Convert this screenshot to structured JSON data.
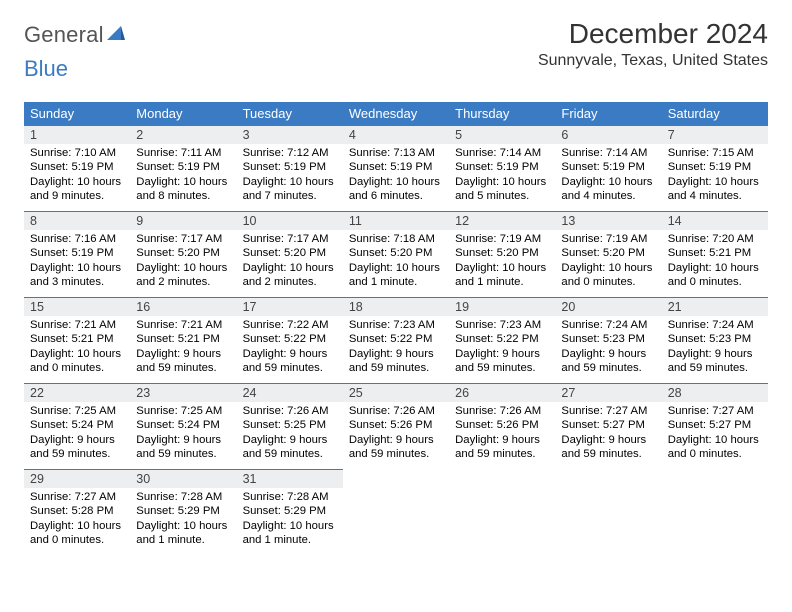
{
  "brand": {
    "word1": "General",
    "word2": "Blue",
    "color1": "#555555",
    "color2": "#3b7bc4"
  },
  "title": "December 2024",
  "location": "Sunnyvale, Texas, United States",
  "header_bg": "#3b7bc4",
  "days_of_week": [
    "Sunday",
    "Monday",
    "Tuesday",
    "Wednesday",
    "Thursday",
    "Friday",
    "Saturday"
  ],
  "cells": [
    {
      "n": 1,
      "sunrise": "7:10 AM",
      "sunset": "5:19 PM",
      "daylight": "10 hours and 9 minutes."
    },
    {
      "n": 2,
      "sunrise": "7:11 AM",
      "sunset": "5:19 PM",
      "daylight": "10 hours and 8 minutes."
    },
    {
      "n": 3,
      "sunrise": "7:12 AM",
      "sunset": "5:19 PM",
      "daylight": "10 hours and 7 minutes."
    },
    {
      "n": 4,
      "sunrise": "7:13 AM",
      "sunset": "5:19 PM",
      "daylight": "10 hours and 6 minutes."
    },
    {
      "n": 5,
      "sunrise": "7:14 AM",
      "sunset": "5:19 PM",
      "daylight": "10 hours and 5 minutes."
    },
    {
      "n": 6,
      "sunrise": "7:14 AM",
      "sunset": "5:19 PM",
      "daylight": "10 hours and 4 minutes."
    },
    {
      "n": 7,
      "sunrise": "7:15 AM",
      "sunset": "5:19 PM",
      "daylight": "10 hours and 4 minutes."
    },
    {
      "n": 8,
      "sunrise": "7:16 AM",
      "sunset": "5:19 PM",
      "daylight": "10 hours and 3 minutes."
    },
    {
      "n": 9,
      "sunrise": "7:17 AM",
      "sunset": "5:20 PM",
      "daylight": "10 hours and 2 minutes."
    },
    {
      "n": 10,
      "sunrise": "7:17 AM",
      "sunset": "5:20 PM",
      "daylight": "10 hours and 2 minutes."
    },
    {
      "n": 11,
      "sunrise": "7:18 AM",
      "sunset": "5:20 PM",
      "daylight": "10 hours and 1 minute."
    },
    {
      "n": 12,
      "sunrise": "7:19 AM",
      "sunset": "5:20 PM",
      "daylight": "10 hours and 1 minute."
    },
    {
      "n": 13,
      "sunrise": "7:19 AM",
      "sunset": "5:20 PM",
      "daylight": "10 hours and 0 minutes."
    },
    {
      "n": 14,
      "sunrise": "7:20 AM",
      "sunset": "5:21 PM",
      "daylight": "10 hours and 0 minutes."
    },
    {
      "n": 15,
      "sunrise": "7:21 AM",
      "sunset": "5:21 PM",
      "daylight": "10 hours and 0 minutes."
    },
    {
      "n": 16,
      "sunrise": "7:21 AM",
      "sunset": "5:21 PM",
      "daylight": "9 hours and 59 minutes."
    },
    {
      "n": 17,
      "sunrise": "7:22 AM",
      "sunset": "5:22 PM",
      "daylight": "9 hours and 59 minutes."
    },
    {
      "n": 18,
      "sunrise": "7:23 AM",
      "sunset": "5:22 PM",
      "daylight": "9 hours and 59 minutes."
    },
    {
      "n": 19,
      "sunrise": "7:23 AM",
      "sunset": "5:22 PM",
      "daylight": "9 hours and 59 minutes."
    },
    {
      "n": 20,
      "sunrise": "7:24 AM",
      "sunset": "5:23 PM",
      "daylight": "9 hours and 59 minutes."
    },
    {
      "n": 21,
      "sunrise": "7:24 AM",
      "sunset": "5:23 PM",
      "daylight": "9 hours and 59 minutes."
    },
    {
      "n": 22,
      "sunrise": "7:25 AM",
      "sunset": "5:24 PM",
      "daylight": "9 hours and 59 minutes."
    },
    {
      "n": 23,
      "sunrise": "7:25 AM",
      "sunset": "5:24 PM",
      "daylight": "9 hours and 59 minutes."
    },
    {
      "n": 24,
      "sunrise": "7:26 AM",
      "sunset": "5:25 PM",
      "daylight": "9 hours and 59 minutes."
    },
    {
      "n": 25,
      "sunrise": "7:26 AM",
      "sunset": "5:26 PM",
      "daylight": "9 hours and 59 minutes."
    },
    {
      "n": 26,
      "sunrise": "7:26 AM",
      "sunset": "5:26 PM",
      "daylight": "9 hours and 59 minutes."
    },
    {
      "n": 27,
      "sunrise": "7:27 AM",
      "sunset": "5:27 PM",
      "daylight": "9 hours and 59 minutes."
    },
    {
      "n": 28,
      "sunrise": "7:27 AM",
      "sunset": "5:27 PM",
      "daylight": "10 hours and 0 minutes."
    },
    {
      "n": 29,
      "sunrise": "7:27 AM",
      "sunset": "5:28 PM",
      "daylight": "10 hours and 0 minutes."
    },
    {
      "n": 30,
      "sunrise": "7:28 AM",
      "sunset": "5:29 PM",
      "daylight": "10 hours and 1 minute."
    },
    {
      "n": 31,
      "sunrise": "7:28 AM",
      "sunset": "5:29 PM",
      "daylight": "10 hours and 1 minute."
    }
  ],
  "labels": {
    "sunrise": "Sunrise: ",
    "sunset": "Sunset: ",
    "daylight": "Daylight: "
  }
}
